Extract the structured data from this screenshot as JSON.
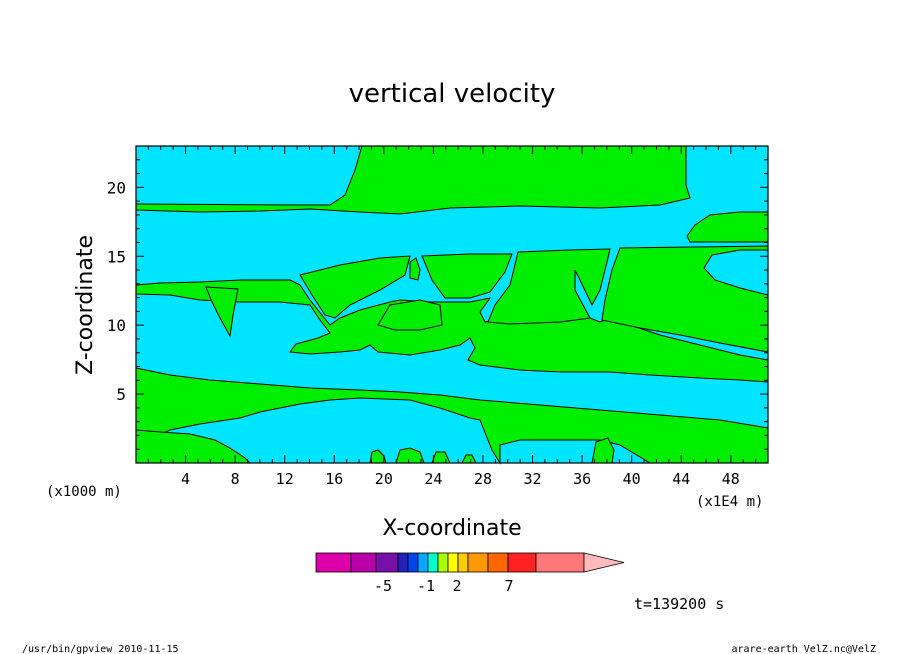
{
  "chart_data": {
    "type": "heatmap",
    "title": "vertical velocity",
    "xlabel": "X-coordinate",
    "ylabel": "Z-coordinate",
    "x_unit_label": "(x1E4 m)",
    "y_unit_label": "(x1000 m)",
    "xlim": [
      0,
      51
    ],
    "ylim": [
      0,
      23
    ],
    "x_ticks": [
      4,
      8,
      12,
      16,
      20,
      24,
      28,
      32,
      36,
      40,
      44,
      48
    ],
    "y_ticks": [
      5,
      10,
      15,
      20
    ],
    "contour_levels_shown": [
      "negative (cyan)",
      "positive (green)"
    ],
    "colorbar": {
      "colors": [
        "#dd00aa",
        "#bb00aa",
        "#7711aa",
        "#2222bb",
        "#0044ee",
        "#00aaff",
        "#00ffcc",
        "#aaff00",
        "#ffff00",
        "#ffcc00",
        "#ff9900",
        "#ff6600",
        "#ff2222",
        "#ff7777",
        "#ffbbbb"
      ],
      "tick_labels": [
        "-5",
        "-1",
        "2",
        "7"
      ]
    },
    "time_label": "t=139200 s",
    "footer_left": "/usr/bin/gpview   2010-11-15",
    "footer_right": "arare-earth_VelZ.nc@VelZ",
    "region_colors": {
      "cyan": "#00e5ff",
      "green": "#00ee00"
    }
  }
}
